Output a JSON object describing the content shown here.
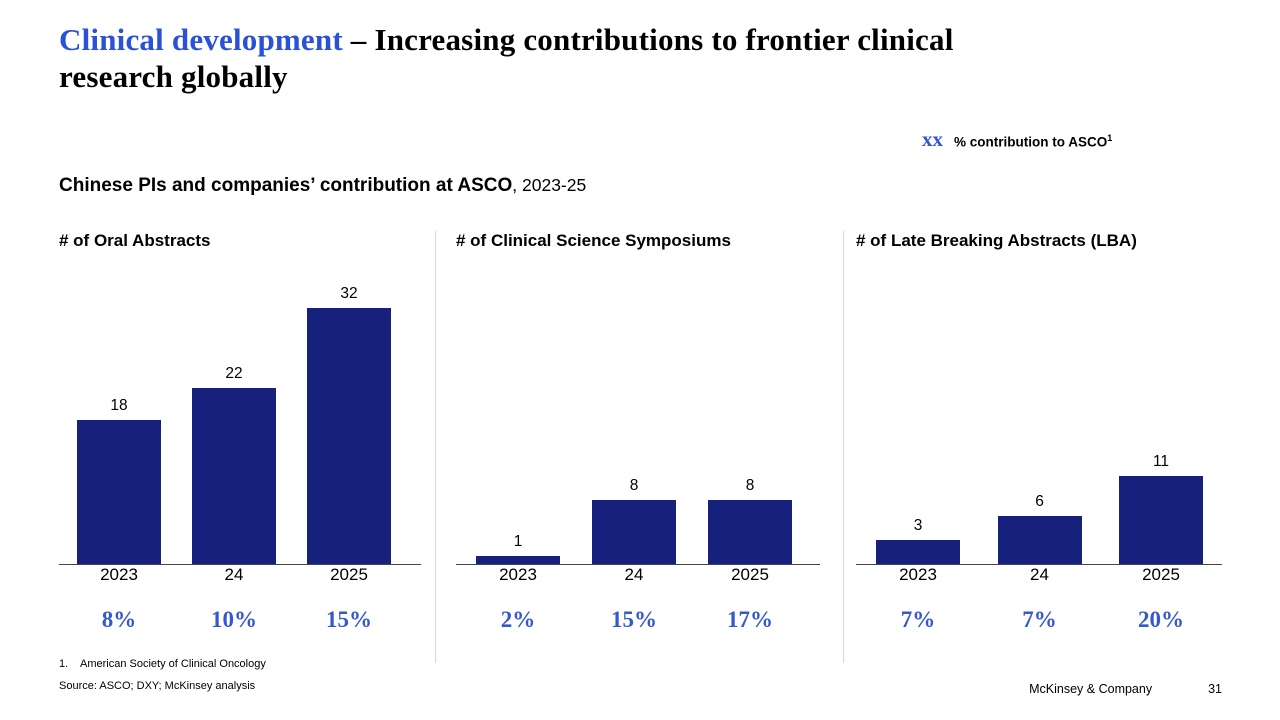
{
  "slide": {
    "title": {
      "highlight": "Clinical development",
      "rest_line1": " – Increasing contributions to frontier clinical",
      "rest_line2": "research globally"
    },
    "legend": {
      "marker": "xx",
      "label": "% contribution to ASCO",
      "superscript": "1"
    },
    "subtitle": {
      "bold": "Chinese PIs and companies’ contribution at ASCO",
      "regular": ", 2023-25"
    },
    "footnote": {
      "number": "1.",
      "text": "American Society of Clinical Oncology"
    },
    "source": "Source: ASCO; DXY; McKinsey analysis",
    "footer": {
      "company": "McKinsey & Company",
      "page": "31"
    }
  },
  "colors": {
    "bar": "#15217c",
    "title_accent": "#2a52d6",
    "percent_blue": "#3558cf",
    "divider": "#d9d9d9",
    "axis": "#444444"
  },
  "chart_data": [
    {
      "type": "bar",
      "title": "# of Oral Abstracts",
      "categories": [
        "2023",
        "24",
        "2025"
      ],
      "values": [
        18,
        22,
        32
      ],
      "percent_labels": [
        "8%",
        "10%",
        "15%"
      ],
      "ylim": [
        0,
        35
      ],
      "grid": false,
      "legend_position": "none"
    },
    {
      "type": "bar",
      "title": "# of Clinical Science Symposiums",
      "categories": [
        "2023",
        "24",
        "2025"
      ],
      "values": [
        1,
        8,
        8
      ],
      "percent_labels": [
        "2%",
        "15%",
        "17%"
      ],
      "ylim": [
        0,
        35
      ],
      "grid": false,
      "legend_position": "none"
    },
    {
      "type": "bar",
      "title": "# of Late Breaking Abstracts (LBA)",
      "categories": [
        "2023",
        "24",
        "2025"
      ],
      "values": [
        3,
        6,
        11
      ],
      "percent_labels": [
        "7%",
        "7%",
        "20%"
      ],
      "ylim": [
        0,
        35
      ],
      "grid": false,
      "legend_position": "none"
    }
  ]
}
